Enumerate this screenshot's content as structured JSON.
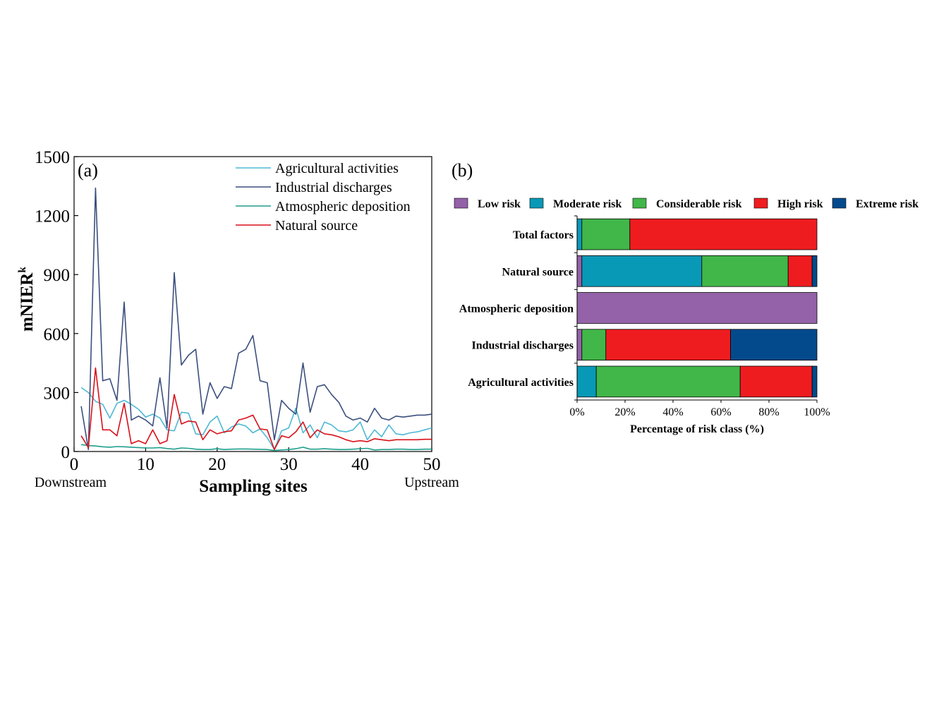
{
  "chart_data": [
    {
      "panel": "(a)",
      "type": "line",
      "xlabel": "Sampling sites",
      "ylabel_main": "mNIER",
      "ylabel_sup": "k",
      "x_left_note": "Downstream",
      "x_right_note": "Upstream",
      "xlim": [
        0,
        50
      ],
      "ylim": [
        0,
        1500
      ],
      "xticks": [
        0,
        10,
        20,
        30,
        40,
        50
      ],
      "yticks": [
        0,
        300,
        600,
        900,
        1200,
        1500
      ],
      "legend_position": "top-right",
      "x": [
        1,
        2,
        3,
        4,
        5,
        6,
        7,
        8,
        9,
        10,
        11,
        12,
        13,
        14,
        15,
        16,
        17,
        18,
        19,
        20,
        21,
        22,
        23,
        24,
        25,
        26,
        27,
        28,
        29,
        30,
        31,
        32,
        33,
        34,
        35,
        36,
        37,
        38,
        39,
        40,
        41,
        42,
        43,
        44,
        45,
        46,
        47,
        48,
        49,
        50
      ],
      "series": [
        {
          "name": "Agricultural activities",
          "color": "#4fb8d4",
          "values": [
            325,
            300,
            255,
            240,
            170,
            245,
            260,
            240,
            215,
            175,
            190,
            170,
            110,
            105,
            200,
            195,
            90,
            85,
            150,
            180,
            95,
            125,
            140,
            130,
            95,
            115,
            70,
            10,
            105,
            120,
            220,
            95,
            135,
            70,
            150,
            135,
            105,
            100,
            110,
            150,
            60,
            110,
            75,
            135,
            90,
            85,
            95,
            100,
            110,
            120
          ]
        },
        {
          "name": "Industrial discharges",
          "color": "#3b4f7e",
          "values": [
            230,
            10,
            1340,
            360,
            370,
            260,
            760,
            160,
            180,
            160,
            130,
            375,
            120,
            910,
            440,
            490,
            520,
            190,
            350,
            270,
            330,
            320,
            500,
            520,
            590,
            360,
            350,
            60,
            260,
            220,
            190,
            450,
            200,
            330,
            340,
            290,
            250,
            180,
            160,
            170,
            150,
            220,
            170,
            160,
            180,
            175,
            180,
            185,
            185,
            190
          ]
        },
        {
          "name": "Atmospheric deposition",
          "color": "#1e9e8c",
          "values": [
            35,
            30,
            28,
            24,
            22,
            25,
            24,
            22,
            20,
            18,
            18,
            20,
            15,
            12,
            18,
            16,
            12,
            10,
            10,
            14,
            10,
            12,
            13,
            13,
            12,
            11,
            10,
            5,
            8,
            10,
            14,
            22,
            12,
            12,
            14,
            12,
            10,
            10,
            12,
            14,
            16,
            8,
            10,
            10,
            12,
            12,
            10,
            10,
            12,
            12
          ]
        },
        {
          "name": "Natural source",
          "color": "#d9101a",
          "values": [
            80,
            20,
            425,
            110,
            110,
            80,
            245,
            40,
            55,
            40,
            110,
            40,
            55,
            290,
            140,
            155,
            150,
            60,
            110,
            90,
            100,
            105,
            160,
            170,
            185,
            115,
            110,
            10,
            80,
            70,
            100,
            150,
            70,
            110,
            90,
            85,
            75,
            60,
            50,
            55,
            50,
            65,
            60,
            55,
            60,
            60,
            60,
            60,
            62,
            62
          ]
        }
      ]
    },
    {
      "panel": "(b)",
      "type": "bar",
      "orientation": "horizontal",
      "stacked": "percent",
      "xlabel": "Percentage of risk class (%)",
      "xticks": [
        "0%",
        "20%",
        "40%",
        "60%",
        "80%",
        "100%"
      ],
      "categories": [
        "Total factors",
        "Natural source",
        "Atmospheric deposition",
        "Industrial discharges",
        "Agricultural activities"
      ],
      "legend_position": "top",
      "series": [
        {
          "name": "Low risk",
          "color": "#9362a8",
          "values": [
            0,
            2,
            100,
            2,
            0
          ]
        },
        {
          "name": "Moderate risk",
          "color": "#0899b7",
          "values": [
            2,
            50,
            0,
            0,
            8
          ]
        },
        {
          "name": "Considerable risk",
          "color": "#41b649",
          "values": [
            20,
            36,
            0,
            10,
            60
          ]
        },
        {
          "name": "High risk",
          "color": "#ee1c1f",
          "values": [
            78,
            10,
            0,
            52,
            30
          ]
        },
        {
          "name": "Extreme risk",
          "color": "#034a8c",
          "values": [
            0,
            2,
            0,
            36,
            2
          ]
        }
      ]
    }
  ]
}
